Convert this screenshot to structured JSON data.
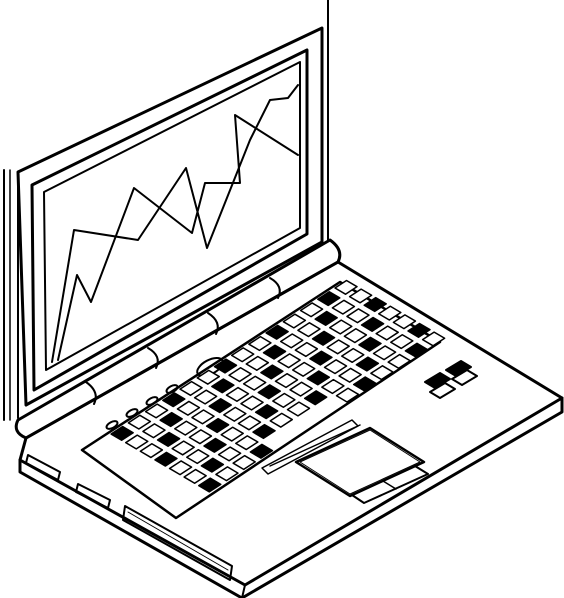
{
  "illustration": {
    "subject": "laptop-computer",
    "style": "black-and-white line art",
    "colors": {
      "ink": "#000000",
      "paper": "#ffffff"
    }
  },
  "screen": {
    "chart": {
      "type": "line",
      "series_count": 2,
      "note_icon": "line-chart-icon"
    }
  },
  "keyboard": {
    "key_rows": 7,
    "function_row_keys": 8
  },
  "touchpad": {
    "buttons": 2
  },
  "indicators": {
    "leds": 4,
    "power_button": 1
  }
}
